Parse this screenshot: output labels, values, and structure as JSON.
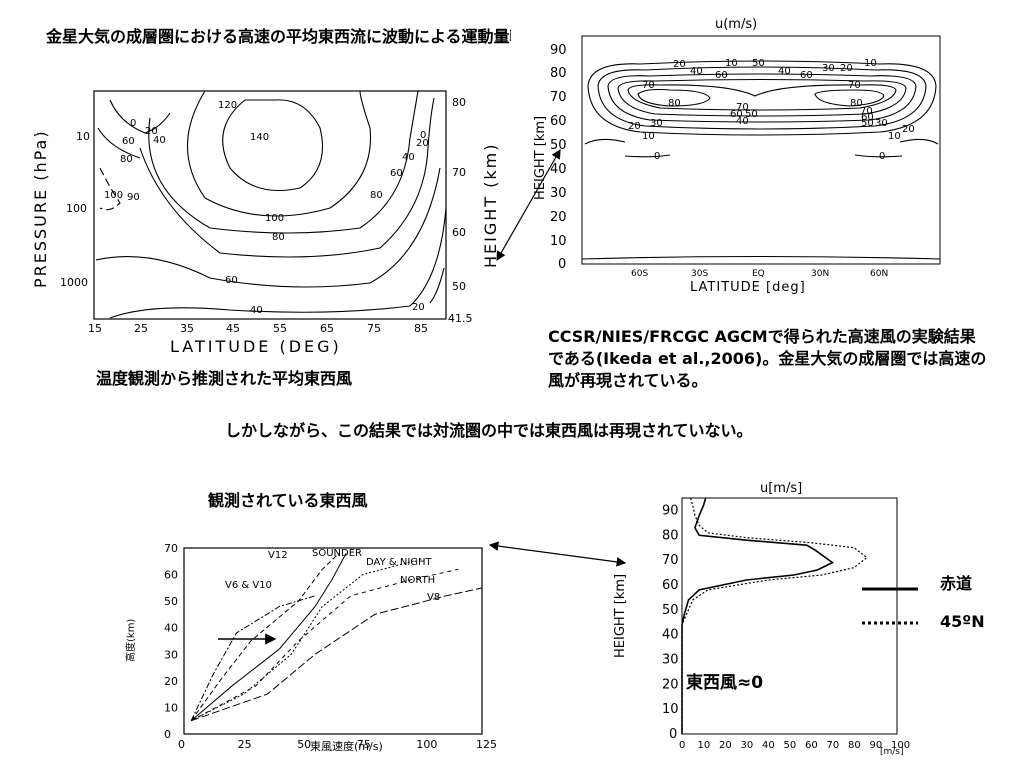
{
  "texts": {
    "title_top": "金星大気の成層圏における高速の平均東西流に波動による運動量輸送が重要な役割を果たしている。",
    "caption_observed_temp": "温度観測から推測された平均東西風",
    "caption_agcm": "CCSR/NIES/FRCGC AGCMで得られた高速風の実験結果である(Ikeda et al.,2006)。金星大気の成層圏では高速の風が再現されている。",
    "middle_text": "しかしながら、この結果では対流圏の中では東西風は再現されていない。",
    "caption_observed_wind": "観測されている東西風",
    "legend_equator": "赤道",
    "legend_45n": "45ºN",
    "east_wind_zero": "東西風≈0"
  },
  "chart_data": [
    {
      "type": "contour",
      "xlabel": "LATITUDE (DEG)",
      "ylabel_left": "PRESSURE (hPa)",
      "ylabel_right": "HEIGHT (km)",
      "x_ticks": [
        "15",
        "25",
        "35",
        "45",
        "55",
        "65",
        "75",
        "85"
      ],
      "y_left_ticks": [
        "10",
        "100",
        "1000"
      ],
      "y_right_ticks": [
        "80",
        "70",
        "60",
        "50",
        "41.5"
      ],
      "contour_labels": [
        "0",
        "20",
        "40",
        "60",
        "80",
        "90",
        "100",
        "120",
        "140",
        "100",
        "80",
        "60",
        "40",
        "20",
        "0",
        "20",
        "40",
        "60",
        "80",
        "100",
        "120"
      ]
    },
    {
      "type": "contour",
      "title": "u(m/s)",
      "xlabel": "LATITUDE [deg]",
      "ylabel": "HEIGHT [km]",
      "x_ticks": [
        "60S",
        "30S",
        "EQ",
        "30N",
        "60N"
      ],
      "y_ticks": [
        "0",
        "10",
        "20",
        "30",
        "40",
        "50",
        "60",
        "70",
        "80",
        "90"
      ],
      "ylim": [
        0,
        95
      ],
      "contour_labels": [
        "10",
        "20",
        "40",
        "50",
        "60",
        "10",
        "40",
        "30",
        "20",
        "10",
        "70",
        "70",
        "80",
        "70",
        "60",
        "50",
        "40",
        "80",
        "20",
        "30",
        "10",
        "70",
        "60",
        "50",
        "40",
        "30",
        "20",
        "10",
        "0",
        "0"
      ]
    },
    {
      "type": "line",
      "xlabel": "東風速度(m/s)",
      "ylabel": "高度(km)",
      "x_ticks": [
        "0",
        "25",
        "50",
        "75",
        "100",
        "125"
      ],
      "y_ticks": [
        "0",
        "10",
        "20",
        "30",
        "40",
        "50",
        "60",
        "70"
      ],
      "xlim": [
        0,
        125
      ],
      "ylim": [
        0,
        70
      ],
      "series": [
        {
          "name": "V12",
          "points": [
            [
              3,
              5
            ],
            [
              15,
              20
            ],
            [
              28,
              35
            ],
            [
              48,
              50
            ],
            [
              58,
              62
            ],
            [
              65,
              68
            ]
          ]
        },
        {
          "name": "SOUNDER",
          "points": [
            [
              3,
              5
            ],
            [
              20,
              18
            ],
            [
              40,
              32
            ],
            [
              55,
              48
            ],
            [
              62,
              58
            ],
            [
              68,
              68
            ]
          ]
        },
        {
          "name": "DAY & NIGHT",
          "points": [
            [
              3,
              5
            ],
            [
              25,
              15
            ],
            [
              45,
              30
            ],
            [
              58,
              48
            ],
            [
              75,
              60
            ],
            [
              100,
              66
            ]
          ]
        },
        {
          "name": "V6 & V10",
          "points": [
            [
              3,
              5
            ],
            [
              12,
              22
            ],
            [
              22,
              38
            ],
            [
              40,
              48
            ],
            [
              55,
              52
            ]
          ]
        },
        {
          "name": "NORTH",
          "points": [
            [
              3,
              5
            ],
            [
              30,
              18
            ],
            [
              48,
              35
            ],
            [
              70,
              52
            ],
            [
              95,
              58
            ],
            [
              115,
              62
            ]
          ]
        },
        {
          "name": "V8",
          "points": [
            [
              3,
              5
            ],
            [
              35,
              15
            ],
            [
              55,
              30
            ],
            [
              80,
              45
            ],
            [
              110,
              52
            ],
            [
              125,
              55
            ]
          ]
        }
      ]
    },
    {
      "type": "line",
      "title": "u[m/s]",
      "xlabel": "[m/s]",
      "ylabel": "HEIGHT [km]",
      "x_ticks": [
        "0",
        "10",
        "20",
        "30",
        "40",
        "50",
        "60",
        "70",
        "80",
        "90",
        "100"
      ],
      "y_ticks": [
        "0",
        "10",
        "20",
        "30",
        "40",
        "50",
        "60",
        "70",
        "80",
        "90"
      ],
      "xlim": [
        0,
        100
      ],
      "ylim": [
        0,
        95
      ],
      "series": [
        {
          "name": "赤道",
          "points": [
            [
              0,
              0
            ],
            [
              0,
              44
            ],
            [
              1,
              48
            ],
            [
              3,
              54
            ],
            [
              8,
              58
            ],
            [
              30,
              62
            ],
            [
              52,
              64
            ],
            [
              63,
              66
            ],
            [
              70,
              69
            ],
            [
              62,
              74
            ],
            [
              58,
              76
            ],
            [
              30,
              78
            ],
            [
              8,
              80
            ],
            [
              6,
              83
            ],
            [
              8,
              88
            ],
            [
              10,
              92
            ],
            [
              11,
              95
            ]
          ]
        },
        {
          "name": "45ºN",
          "points": [
            [
              0,
              0
            ],
            [
              0,
              44
            ],
            [
              2,
              48
            ],
            [
              5,
              54
            ],
            [
              12,
              58
            ],
            [
              40,
              62
            ],
            [
              65,
              64
            ],
            [
              80,
              67
            ],
            [
              86,
              71
            ],
            [
              80,
              75
            ],
            [
              60,
              77
            ],
            [
              30,
              79
            ],
            [
              12,
              81
            ],
            [
              8,
              84
            ],
            [
              6,
              88
            ],
            [
              5,
              92
            ],
            [
              4,
              95
            ]
          ]
        }
      ]
    }
  ]
}
